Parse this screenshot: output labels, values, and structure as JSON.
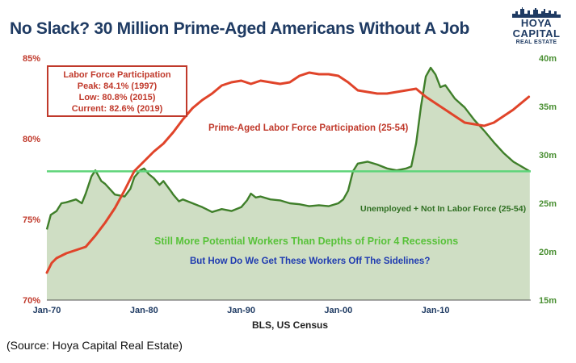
{
  "title": "No Slack? 30 Million Prime-Aged Americans Without A Job",
  "logo": {
    "line1": "HOYA CAPITAL",
    "line2": "REAL ESTATE"
  },
  "source_note": "(Source: Hoya Capital Real Estate)",
  "legend_box": {
    "heading": "Labor Force Participation",
    "peak": "Peak: 84.1% (1997)",
    "low": "Low: 80.8% (2015)",
    "current": "Current: 82.6% (2019)"
  },
  "annotations": {
    "lfp_label": "Prime-Aged Labor Force Participation (25-54)",
    "unemp_label": "Unemployed + Not In Labor Force (25-54)",
    "green_note": "Still More Potential Workers Than Depths of Prior 4 Recessions",
    "blue_note": "But How Do We Get These Workers Off The Sidelines?"
  },
  "colors": {
    "lfp_line": "#e0442a",
    "unemp_line": "#3f7f2a",
    "unemp_fill": "#cfdec4",
    "reference_line": "#5fd47a",
    "title": "#1f3b63",
    "box_red": "#c0392b",
    "blue_note": "#1f3bb0",
    "green_note": "#58c23a"
  },
  "chart_data": {
    "type": "line",
    "xlabel": "BLS, US Census",
    "x_range": [
      1970,
      2019.8
    ],
    "x_ticks": [
      {
        "label": "Jan-70",
        "value": 1970
      },
      {
        "label": "Jan-80",
        "value": 1980
      },
      {
        "label": "Jan-90",
        "value": 1990
      },
      {
        "label": "Jan-00",
        "value": 2000
      },
      {
        "label": "Jan-10",
        "value": 2010
      }
    ],
    "y_left": {
      "range": [
        70,
        85
      ],
      "ticks": [
        "70%",
        "75%",
        "80%",
        "85%"
      ],
      "tick_values": [
        70,
        75,
        80,
        85
      ]
    },
    "y_right": {
      "range": [
        15,
        40
      ],
      "ticks": [
        "15m",
        "20m",
        "25m",
        "30m",
        "35m",
        "40m"
      ],
      "tick_values": [
        15,
        20,
        25,
        30,
        35,
        40
      ]
    },
    "reference_line_y_right": 28.3,
    "series": [
      {
        "axis": "left",
        "style": "line",
        "x": [
          1970,
          1970.5,
          1971,
          1972,
          1973,
          1974,
          1975,
          1976,
          1977,
          1978,
          1979,
          1980,
          1981,
          1982,
          1983,
          1984,
          1985,
          1986,
          1987,
          1988,
          1989,
          1990,
          1991,
          1992,
          1993,
          1994,
          1995,
          1996,
          1997,
          1998,
          1999,
          2000,
          2001,
          2002,
          2003,
          2004,
          2005,
          2006,
          2007,
          2008,
          2009,
          2010,
          2011,
          2012,
          2013,
          2014,
          2015,
          2016,
          2017,
          2018,
          2019.6
        ],
        "values": [
          71.7,
          72.3,
          72.6,
          72.9,
          73.1,
          73.3,
          74.0,
          74.8,
          75.7,
          76.8,
          78.0,
          78.6,
          79.2,
          79.7,
          80.4,
          81.2,
          81.9,
          82.4,
          82.8,
          83.3,
          83.5,
          83.6,
          83.4,
          83.6,
          83.5,
          83.4,
          83.5,
          83.9,
          84.1,
          84.0,
          84.0,
          83.9,
          83.5,
          83.0,
          82.9,
          82.8,
          82.8,
          82.9,
          83.0,
          83.1,
          82.6,
          82.2,
          81.8,
          81.4,
          81.0,
          80.9,
          80.8,
          81.0,
          81.4,
          81.8,
          82.6
        ]
      },
      {
        "axis": "right",
        "style": "area",
        "x": [
          1970,
          1970.4,
          1971,
          1971.5,
          1972,
          1973,
          1973.6,
          1974,
          1974.6,
          1975,
          1975.6,
          1976,
          1977,
          1978,
          1978.6,
          1979,
          1979.6,
          1980,
          1980.5,
          1981,
          1981.6,
          1982,
          1982.8,
          1983,
          1983.6,
          1984,
          1985,
          1986,
          1987,
          1988,
          1989,
          1990,
          1990.6,
          1991,
          1991.5,
          1992,
          1993,
          1994,
          1995,
          1996,
          1997,
          1998,
          1999,
          2000,
          2000.5,
          2001,
          2001.5,
          2002,
          2003,
          2004,
          2005,
          2006,
          2007,
          2007.5,
          2008,
          2008.5,
          2009,
          2009.5,
          2010,
          2010.5,
          2011,
          2012,
          2013,
          2014,
          2015,
          2016,
          2017,
          2018,
          2019.7
        ],
        "values": [
          22.3,
          23.8,
          24.2,
          25.0,
          25.1,
          25.4,
          25.0,
          26.0,
          27.8,
          28.4,
          27.3,
          27.0,
          25.9,
          25.7,
          26.5,
          27.7,
          28.4,
          28.6,
          28.0,
          27.6,
          26.9,
          27.3,
          26.2,
          25.9,
          25.2,
          25.4,
          25.0,
          24.6,
          24.1,
          24.4,
          24.2,
          24.6,
          25.3,
          26.0,
          25.6,
          25.7,
          25.4,
          25.3,
          25.0,
          24.9,
          24.7,
          24.8,
          24.7,
          25.0,
          25.4,
          26.3,
          28.3,
          29.1,
          29.3,
          29.0,
          28.6,
          28.4,
          28.6,
          28.8,
          31.2,
          35.0,
          38.1,
          39.0,
          38.3,
          37.0,
          37.2,
          35.8,
          34.9,
          33.6,
          32.5,
          31.3,
          30.2,
          29.3,
          28.3
        ]
      }
    ]
  }
}
